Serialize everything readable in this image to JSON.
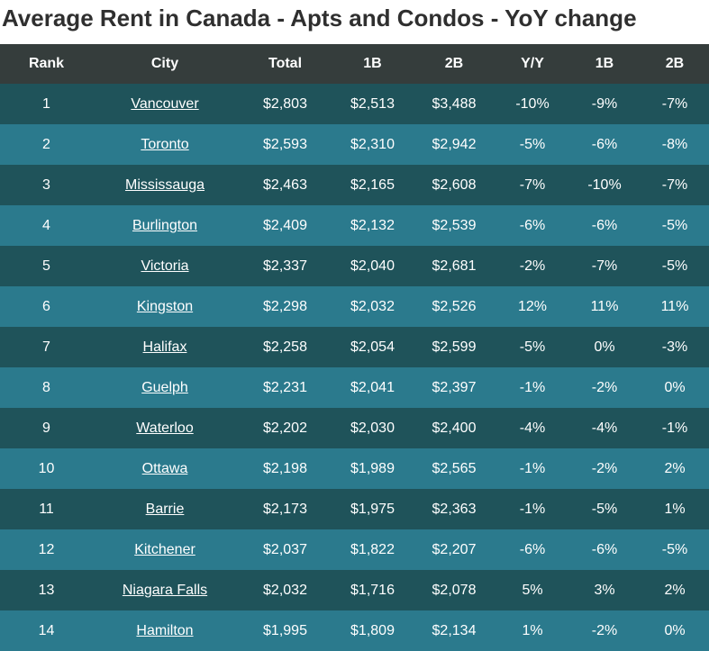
{
  "page": {
    "title": "Average Rent in Canada - Apts and Condos - YoY change"
  },
  "chart_data": {
    "type": "table",
    "title": "Average Rent in Canada - Apts and Condos - YoY change",
    "columns": [
      "Rank",
      "City",
      "Total",
      "1B",
      "2B",
      "Y/Y",
      "1B",
      "2B"
    ],
    "rows": [
      [
        "1",
        "Vancouver",
        "$2,803",
        "$2,513",
        "$3,488",
        "-10%",
        "-9%",
        "-7%"
      ],
      [
        "2",
        "Toronto",
        "$2,593",
        "$2,310",
        "$2,942",
        "-5%",
        "-6%",
        "-8%"
      ],
      [
        "3",
        "Mississauga",
        "$2,463",
        "$2,165",
        "$2,608",
        "-7%",
        "-10%",
        "-7%"
      ],
      [
        "4",
        "Burlington",
        "$2,409",
        "$2,132",
        "$2,539",
        "-6%",
        "-6%",
        "-5%"
      ],
      [
        "5",
        "Victoria",
        "$2,337",
        "$2,040",
        "$2,681",
        "-2%",
        "-7%",
        "-5%"
      ],
      [
        "6",
        "Kingston",
        "$2,298",
        "$2,032",
        "$2,526",
        "12%",
        "11%",
        "11%"
      ],
      [
        "7",
        "Halifax",
        "$2,258",
        "$2,054",
        "$2,599",
        "-5%",
        "0%",
        "-3%"
      ],
      [
        "8",
        "Guelph",
        "$2,231",
        "$2,041",
        "$2,397",
        "-1%",
        "-2%",
        "0%"
      ],
      [
        "9",
        "Waterloo",
        "$2,202",
        "$2,030",
        "$2,400",
        "-4%",
        "-4%",
        "-1%"
      ],
      [
        "10",
        "Ottawa",
        "$2,198",
        "$1,989",
        "$2,565",
        "-1%",
        "-2%",
        "2%"
      ],
      [
        "11",
        "Barrie",
        "$2,173",
        "$1,975",
        "$2,363",
        "-1%",
        "-5%",
        "1%"
      ],
      [
        "12",
        "Kitchener",
        "$2,037",
        "$1,822",
        "$2,207",
        "-6%",
        "-6%",
        "-5%"
      ],
      [
        "13",
        "Niagara Falls",
        "$2,032",
        "$1,716",
        "$2,078",
        "5%",
        "3%",
        "2%"
      ],
      [
        "14",
        "Hamilton",
        "$1,995",
        "$1,809",
        "$2,134",
        "1%",
        "-2%",
        "0%"
      ]
    ]
  },
  "colors": {
    "header_bg": "#353d3c",
    "row_dark": "#1f535a",
    "row_light": "#2b7a8d",
    "text": "#ffffff",
    "title_text": "#2f2f2f"
  }
}
